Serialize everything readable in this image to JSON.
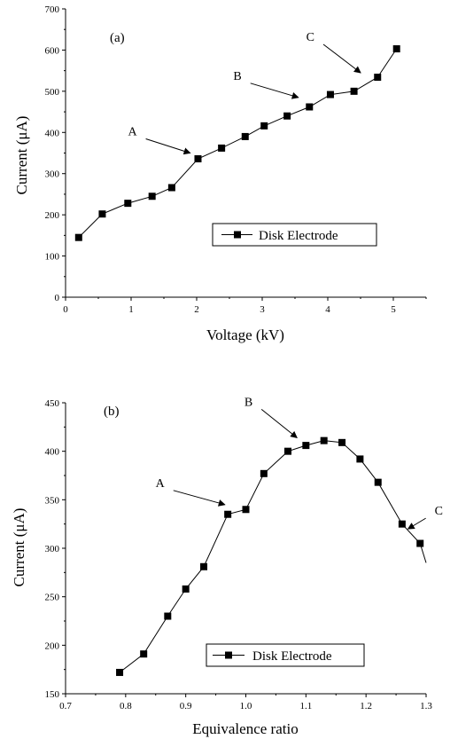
{
  "chart_data": [
    {
      "type": "line",
      "panel_label": "(a)",
      "xlabel": "Voltage (kV)",
      "ylabel": "Current (μA)",
      "xlim": [
        0,
        5.5
      ],
      "ylim": [
        0,
        700
      ],
      "xticks": [
        0,
        1,
        2,
        3,
        4,
        5
      ],
      "yticks": [
        0,
        100,
        200,
        300,
        400,
        500,
        600,
        700
      ],
      "grid": false,
      "legend_position": "center-right",
      "series": [
        {
          "name": "Disk Electrode",
          "marker": "square",
          "color": "#000000",
          "x": [
            0.2,
            0.56,
            0.95,
            1.32,
            1.62,
            2.02,
            2.38,
            2.74,
            3.03,
            3.38,
            3.72,
            4.04,
            4.4,
            4.76,
            5.05
          ],
          "y": [
            145,
            202,
            228,
            245,
            266,
            336,
            362,
            390,
            416,
            440,
            462,
            492,
            500,
            534,
            603
          ]
        }
      ],
      "annotations": [
        {
          "text": "A",
          "point_x": 1.9,
          "point_y": 350
        },
        {
          "text": "B",
          "point_x": 3.55,
          "point_y": 485
        },
        {
          "text": "C",
          "point_x": 4.5,
          "point_y": 545
        }
      ]
    },
    {
      "type": "line",
      "panel_label": "(b)",
      "xlabel": "Equivalence ratio",
      "ylabel": "Current (μA)",
      "xlim": [
        0.7,
        1.3
      ],
      "ylim": [
        150,
        450
      ],
      "xticks": [
        0.7,
        0.8,
        0.9,
        1.0,
        1.1,
        1.2,
        1.3
      ],
      "xtick_labels": [
        "0.7",
        "0.8",
        "0.9",
        "1.0",
        "1.1",
        "1.2",
        "1.3"
      ],
      "yticks": [
        150,
        200,
        250,
        300,
        350,
        400,
        450
      ],
      "grid": false,
      "legend_position": "bottom-center",
      "series": [
        {
          "name": "Disk Electrode",
          "marker": "square",
          "color": "#000000",
          "x": [
            0.79,
            0.83,
            0.87,
            0.9,
            0.93,
            0.97,
            1.0,
            1.03,
            1.07,
            1.1,
            1.13,
            1.16,
            1.19,
            1.22,
            1.26,
            1.29
          ],
          "y": [
            172,
            191,
            230,
            258,
            281,
            335,
            340,
            377,
            400,
            406,
            411,
            409,
            392,
            368,
            325,
            305
          ],
          "trailing_line_end": [
            1.3,
            285
          ]
        }
      ],
      "annotations": [
        {
          "text": "A",
          "point_x": 0.965,
          "point_y": 345
        },
        {
          "text": "B",
          "point_x": 1.085,
          "point_y": 414
        },
        {
          "text": "C",
          "point_x": 1.27,
          "point_y": 320
        }
      ]
    }
  ]
}
